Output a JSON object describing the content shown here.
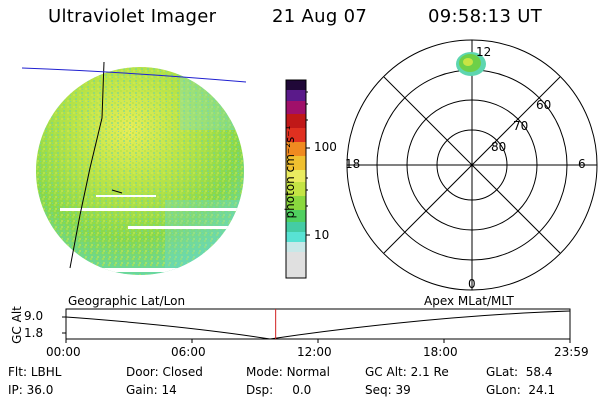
{
  "header": {
    "instrument": "Ultraviolet Imager",
    "date": "21 Aug 07",
    "time": "09:58:13 UT"
  },
  "colorbar": {
    "unit_label": "photon cm⁻²s⁻¹",
    "ticks": [
      "100",
      "10"
    ],
    "colors": [
      "#d8d8d8",
      "#5de6d6",
      "#44c8a0",
      "#58d060",
      "#9edc3a",
      "#e6e85a",
      "#f0c030",
      "#f08a20",
      "#e03020",
      "#c01818",
      "#a0106a",
      "#5a1a8a",
      "#200838",
      "#000000"
    ]
  },
  "polar_plot": {
    "mlt_labels": {
      "top": "12",
      "left": "18",
      "right": "6",
      "bottom": "0"
    },
    "lat_labels": [
      "60",
      "70",
      "80"
    ]
  },
  "timeline": {
    "left_label": "Geographic Lat/Lon",
    "right_label": "Apex MLat/MLT",
    "axis_title": "GC Alt",
    "y_ticks": [
      "9.0",
      "1.8"
    ],
    "x_ticks": [
      "00:00",
      "06:00",
      "12:00",
      "18:00",
      "23:59"
    ],
    "current_time_fraction": 0.416
  },
  "status": {
    "row1": [
      {
        "key": "Flt:",
        "value": "LBHL"
      },
      {
        "key": "Door:",
        "value": "Closed"
      },
      {
        "key": "Mode:",
        "value": "Normal"
      },
      {
        "key": "GC Alt:",
        "value": "2.1 Re"
      },
      {
        "key": "GLat:",
        "value": "58.4"
      }
    ],
    "row2": [
      {
        "key": "IP:",
        "value": "36.0"
      },
      {
        "key": "Gain:",
        "value": "14"
      },
      {
        "key": "Dsp:",
        "value": "0.0"
      },
      {
        "key": "Seq:",
        "value": "39"
      },
      {
        "key": "GLon:",
        "value": "24.1"
      }
    ]
  },
  "colors": {
    "globe_base": "#8fd848",
    "globe_bright": "#e6ee5a",
    "globe_edge": "#5dd6b8",
    "limb_line": "#2020d0",
    "current_time_marker": "#d02020"
  }
}
